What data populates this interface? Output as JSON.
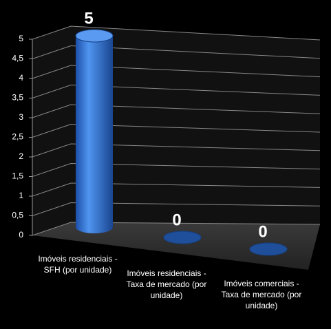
{
  "chart_data": {
    "type": "bar3d",
    "categories": [
      "Imóveis residenciais - SFH (por unidade)",
      "Imóveis residenciais - Taxa de mercado (por unidade)",
      "Imóveis comerciais - Taxa de mercado (por unidade)"
    ],
    "values": [
      5,
      0,
      0
    ],
    "color": "#2f6fd6",
    "ylim": [
      0,
      5
    ],
    "yticks": [
      0,
      {
        "value": 0.5,
        "label": "0,5"
      },
      1,
      {
        "value": 1.5,
        "label": "1,5"
      },
      2,
      {
        "value": 2.5,
        "label": "2,5"
      },
      3,
      {
        "value": 3.5,
        "label": "3,5"
      },
      4,
      {
        "value": 4.5,
        "label": "4,5"
      },
      5
    ],
    "grid": true
  }
}
